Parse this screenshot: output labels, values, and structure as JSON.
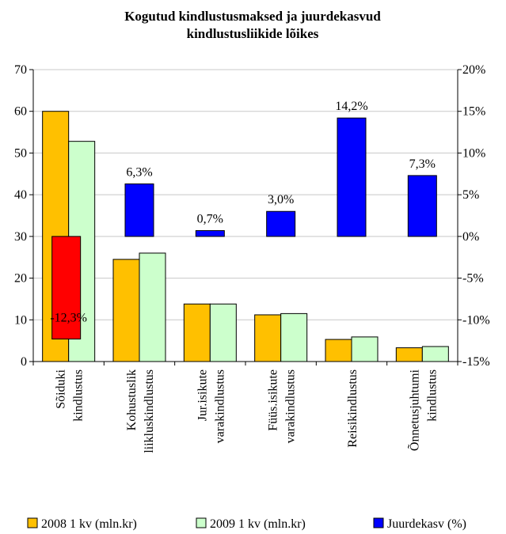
{
  "chart_data": {
    "type": "bar",
    "title": [
      "Kogutud kindlustusmaksed ja juurdekasvud",
      "kindlustusliikide lõikes"
    ],
    "categories": [
      [
        "Sõiduki",
        "kindlustus"
      ],
      [
        "Kohustuslik",
        "liikluskindlustus"
      ],
      [
        "Jur.isikute",
        "varakindlustus"
      ],
      [
        "Füüs.isikute",
        "varakindlustus"
      ],
      [
        "Reisikindlustus"
      ],
      [
        "Õnnetusjuhtumi",
        "kindlustus"
      ]
    ],
    "series": [
      {
        "name": "2008 1 kv (mln.kr)",
        "axis": "left",
        "values": [
          60.0,
          24.5,
          13.8,
          11.2,
          5.3,
          3.3
        ],
        "color": "#FFC000"
      },
      {
        "name": "2009 1 kv (mln.kr)",
        "axis": "left",
        "values": [
          52.8,
          26.0,
          13.8,
          11.5,
          5.9,
          3.6
        ],
        "color": "#CCFFCC"
      },
      {
        "name": "Juurdekasv (%)",
        "axis": "right",
        "values": [
          -12.3,
          6.3,
          0.7,
          3.0,
          14.2,
          7.3
        ],
        "labels": [
          "-12,3%",
          "6,3%",
          "0,7%",
          "3,0%",
          "14,2%",
          "7,3%"
        ],
        "color": "#0000FF",
        "negative_color": "#FF0000"
      }
    ],
    "left_axis": {
      "min": 0,
      "max": 70,
      "ticks": [
        "0",
        "10",
        "20",
        "30",
        "40",
        "50",
        "60",
        "70"
      ]
    },
    "right_axis": {
      "min": -15,
      "max": 20,
      "ticks": [
        "-15%",
        "-10%",
        "-5%",
        "0%",
        "5%",
        "10%",
        "15%",
        "20%"
      ]
    },
    "grid": true,
    "legend_position": "bottom"
  }
}
